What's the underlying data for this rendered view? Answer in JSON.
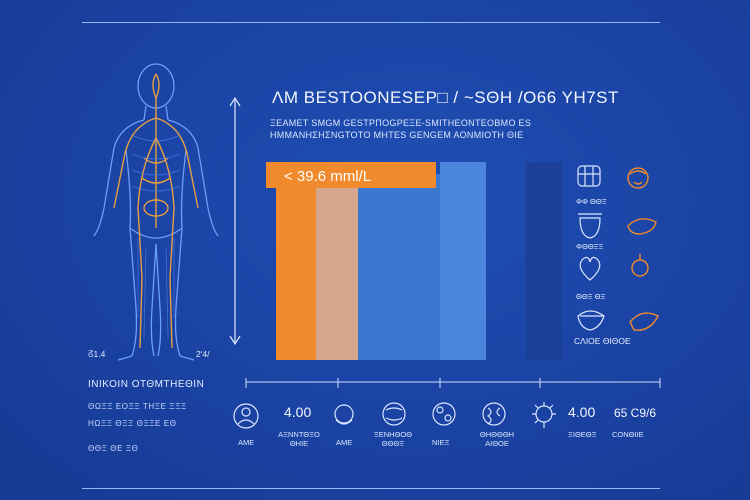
{
  "header": {
    "title": "ΛΜ ΒΕSTOONESΕΡ□ / ~SΘΗ /Ο66 ΥΗ7ST",
    "subtitle_line1": "ΞΕΑΜΕΤ SΜGΜ GESTΡΠΟGΡΕΞΕ-SΜΙΤΗΕΟΝΤΕΟΒΜΟ ΕS",
    "subtitle_line2": "ΗΜΜΑΝΗΣΗΣΝGΤΟΤΟ ΜΗΤΕS GΕΝGΕΜ ΑΟΝΜΙΟΤΗ ΘΙΕ"
  },
  "figure": {
    "left_tick_label": "ᘔ1.4",
    "right_tick_label": "2ʹ4/",
    "caption": "ΙΝΙΚΟΙΝ ΟΤΘΜΤΗΕΘΙΝ",
    "caption_lines": [
      "ΘΩΞΞ ΕΟΞΞ ΤΗΞΕ ΞΞΞ",
      "ΗΩΞΞ ΘΞΞ ΘΞΞΕ ΕΘ",
      "ΘΘΞ ΘΕ ΞΘ"
    ]
  },
  "chart_data": {
    "type": "bar",
    "callout": "< 39.6 mml/L",
    "categories": [
      "",
      "",
      "",
      "",
      ""
    ],
    "values": [
      100,
      94,
      94,
      100,
      100
    ],
    "colors": [
      "#f08a2c",
      "#d6a68f",
      "#3a78cf",
      "#4b86dc",
      "#1c3f98"
    ],
    "ylim": [
      0,
      100
    ]
  },
  "legend": {
    "items": [
      {
        "label": "ΦΦ ΘΘΞ"
      },
      {
        "label": "ΦΘΘΞΞ"
      },
      {
        "label": "ΘΘΞ ΘΞ"
      },
      {
        "label": "CΛΙΟΕ ΘΙΘΟΕ"
      }
    ]
  },
  "bottom": {
    "items": [
      {
        "value": "",
        "label": "ΑΜΕ"
      },
      {
        "value": "4.00",
        "label": "ΑΞΝΝΤΘΞΟ ΘΗΙΕ"
      },
      {
        "value": "",
        "label": "ΑΜΕ"
      },
      {
        "value": "",
        "label": "ΞΕΝΗΘΟΘ ΘΘΘΞ"
      },
      {
        "value": "",
        "label": "ΝΙΕΞ"
      },
      {
        "value": "",
        "label": "ΘΗΘΘΘΗ ΑΙΘΟΕ"
      },
      {
        "value": "",
        "label": ""
      },
      {
        "value": "4.00",
        "label": "ΞΙΘΕΘΞ"
      },
      {
        "value": "65 C9/6",
        "label": "CΟΝΘΙΙΕ"
      }
    ]
  },
  "colors": {
    "background": "#1b44a6",
    "accent_orange": "#f08a2c",
    "line_blue": "#a9c3ff"
  }
}
